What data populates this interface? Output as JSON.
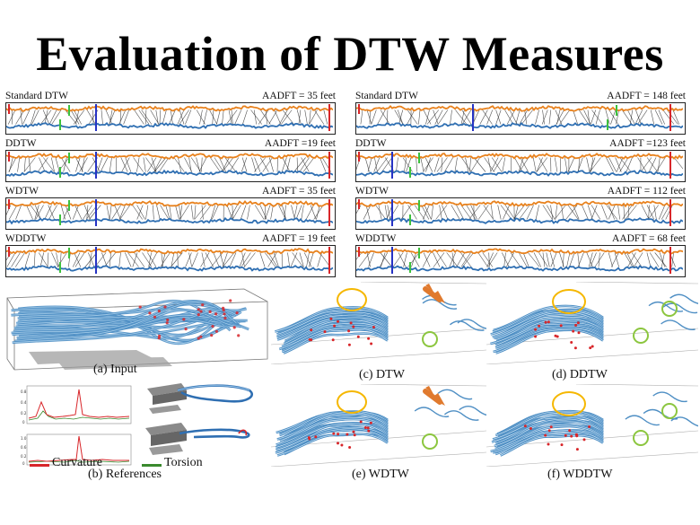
{
  "title": "Evaluation of DTW Measures",
  "panels": [
    {
      "id": "l1",
      "method": "Standard DTW",
      "score": "AADFT = 35 feet"
    },
    {
      "id": "r1",
      "method": "Standard DTW",
      "score": "AADFT = 148 feet"
    },
    {
      "id": "l2",
      "method": "DDTW",
      "score": "AADFT =19 feet"
    },
    {
      "id": "r2",
      "method": "DDTW",
      "score": "AADFT =123 feet"
    },
    {
      "id": "l3",
      "method": "WDTW",
      "score": "AADFT = 35 feet"
    },
    {
      "id": "r3",
      "method": "WDTW",
      "score": "AADFT = 112 feet"
    },
    {
      "id": "l4",
      "method": "WDDTW",
      "score": "AADFT = 19 feet"
    },
    {
      "id": "r4",
      "method": "WDDTW",
      "score": "AADFT = 68 feet"
    }
  ],
  "captions": {
    "a": "(a) Input",
    "b": "(b) References",
    "c": "(c) DTW",
    "d": "(d) DDTW",
    "e": "(e) WDTW",
    "f": "(f) WDDTW"
  },
  "legend": {
    "curvature": "Curvature",
    "torsion": "Torsion"
  },
  "colors": {
    "top_series": "#e8821e",
    "bottom_series": "#2f6fb2",
    "alignment": "#333333",
    "marker_red": "#d8262a",
    "marker_blue": "#2633c4",
    "marker_green": "#3dc13d",
    "streamline": "#4f8fc4",
    "highlight_orange": "#f5b700",
    "highlight_green": "#8cc63f",
    "arrow": "#e07a2e",
    "curvature": "#d8262a",
    "torsion": "#3a8a2e"
  }
}
